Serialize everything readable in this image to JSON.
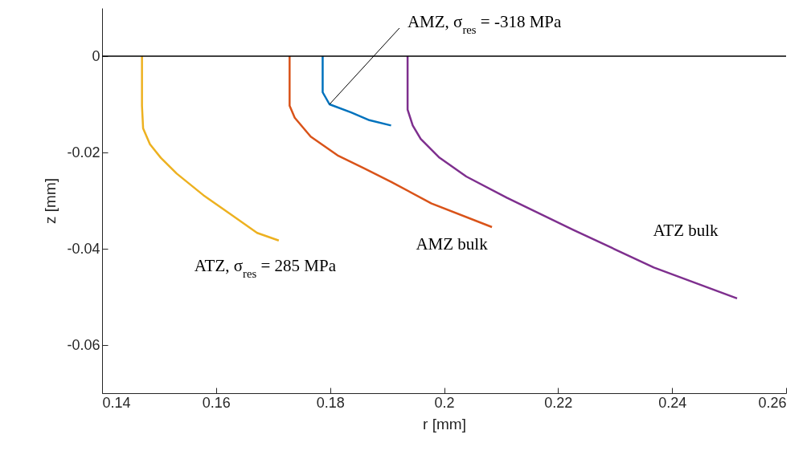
{
  "chart_data": {
    "type": "line",
    "xlabel": "r [mm]",
    "ylabel": "z [mm]",
    "xlim": [
      0.14,
      0.26
    ],
    "xticks": [
      0.14,
      0.16,
      0.18,
      0.2,
      0.22,
      0.24,
      0.26
    ],
    "ylim": [
      -0.07,
      0.01
    ],
    "yticks": [
      -0.06,
      -0.04,
      -0.02,
      0
    ],
    "grid": false,
    "ref_lines": [
      {
        "axis": "y",
        "value": 0,
        "color": "#000000"
      }
    ],
    "series": [
      {
        "name": "AMZ, σ$_{res}$ = -318 MPa",
        "color": "#0072bd",
        "x": [
          0.1787,
          0.1787,
          0.1799,
          0.1837,
          0.1869,
          0.1907
        ],
        "values": [
          0,
          -0.0075,
          -0.01,
          -0.0117,
          -0.0133,
          -0.0144
        ]
      },
      {
        "name": "AMZ bulk",
        "color": "#d95319",
        "x": [
          0.1729,
          0.1729,
          0.1738,
          0.1766,
          0.1813,
          0.186,
          0.1907,
          0.1978,
          0.2084
        ],
        "values": [
          0,
          -0.0103,
          -0.0128,
          -0.0167,
          -0.0206,
          -0.0233,
          -0.0261,
          -0.0306,
          -0.0355
        ]
      },
      {
        "name": "ATZ, σ$_{res}$ = 285 MPa",
        "color": "#edb120",
        "x": [
          0.147,
          0.147,
          0.1472,
          0.1484,
          0.1503,
          0.1531,
          0.1578,
          0.1625,
          0.1672,
          0.171
        ],
        "values": [
          0,
          -0.0103,
          -0.015,
          -0.0183,
          -0.0211,
          -0.0244,
          -0.0289,
          -0.0328,
          -0.0367,
          -0.0383
        ]
      },
      {
        "name": "ATZ bulk",
        "color": "#7e2f8e",
        "x": [
          0.1936,
          0.1936,
          0.1945,
          0.1959,
          0.1992,
          0.2039,
          0.211,
          0.2227,
          0.2368,
          0.2514
        ],
        "values": [
          0,
          -0.0111,
          -0.0144,
          -0.0172,
          -0.0211,
          -0.025,
          -0.0294,
          -0.0361,
          -0.0439,
          -0.0503
        ]
      }
    ]
  }
}
